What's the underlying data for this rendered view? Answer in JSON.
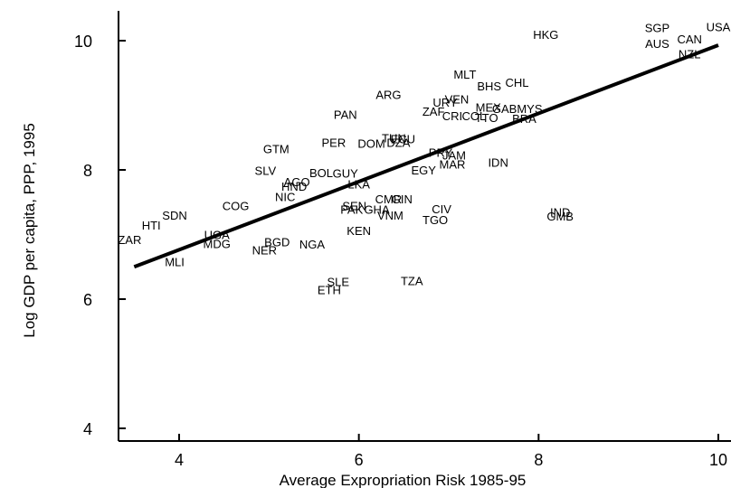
{
  "chart_data": {
    "type": "scatter",
    "xlabel": "Average Expropriation Risk 1985-95",
    "ylabel": "Log GDP per capita, PPP, 1995",
    "xlim": [
      3.3,
      10.0
    ],
    "ylim": [
      3.85,
      10.45
    ],
    "xticks": [
      4,
      6,
      8,
      10
    ],
    "yticks": [
      4,
      6,
      8,
      10
    ],
    "grid": false,
    "fit_line": {
      "x": [
        3.5,
        10.0
      ],
      "y": [
        6.5,
        9.93
      ]
    },
    "points": [
      {
        "label": "USA",
        "x": 10.0,
        "y": 10.22
      },
      {
        "label": "SGP",
        "x": 9.32,
        "y": 10.2
      },
      {
        "label": "CAN",
        "x": 9.68,
        "y": 10.03
      },
      {
        "label": "AUS",
        "x": 9.32,
        "y": 9.96
      },
      {
        "label": "NZL",
        "x": 9.68,
        "y": 9.8
      },
      {
        "label": "HKG",
        "x": 8.08,
        "y": 10.1
      },
      {
        "label": "MLT",
        "x": 7.18,
        "y": 9.48
      },
      {
        "label": "CHL",
        "x": 7.76,
        "y": 9.36
      },
      {
        "label": "BHS",
        "x": 7.45,
        "y": 9.3
      },
      {
        "label": "ARG",
        "x": 6.33,
        "y": 9.17
      },
      {
        "label": "VEN",
        "x": 7.09,
        "y": 9.1
      },
      {
        "label": "URY",
        "x": 6.96,
        "y": 9.05
      },
      {
        "label": "MEX",
        "x": 7.44,
        "y": 8.97
      },
      {
        "label": "GAB",
        "x": 7.62,
        "y": 8.95
      },
      {
        "label": "MYS",
        "x": 7.9,
        "y": 8.95
      },
      {
        "label": "ZAF",
        "x": 6.83,
        "y": 8.91
      },
      {
        "label": "CRI",
        "x": 7.04,
        "y": 8.84
      },
      {
        "label": "COL",
        "x": 7.28,
        "y": 8.84
      },
      {
        "label": "TTO",
        "x": 7.42,
        "y": 8.81
      },
      {
        "label": "BRA",
        "x": 7.84,
        "y": 8.8
      },
      {
        "label": "PAN",
        "x": 5.85,
        "y": 8.86
      },
      {
        "label": "PER",
        "x": 5.72,
        "y": 8.43
      },
      {
        "label": "DOM",
        "x": 6.14,
        "y": 8.41
      },
      {
        "label": "DZA",
        "x": 6.44,
        "y": 8.43
      },
      {
        "label": "TUN",
        "x": 6.39,
        "y": 8.5
      },
      {
        "label": "ECU",
        "x": 6.49,
        "y": 8.48
      },
      {
        "label": "GTM",
        "x": 5.08,
        "y": 8.33
      },
      {
        "label": "PRY",
        "x": 6.91,
        "y": 8.27
      },
      {
        "label": "JAM",
        "x": 7.06,
        "y": 8.23
      },
      {
        "label": "MAR",
        "x": 7.04,
        "y": 8.09
      },
      {
        "label": "EGY",
        "x": 6.72,
        "y": 8.0
      },
      {
        "label": "IDN",
        "x": 7.55,
        "y": 8.12
      },
      {
        "label": "SLV",
        "x": 4.96,
        "y": 7.99
      },
      {
        "label": "BOL",
        "x": 5.58,
        "y": 7.96
      },
      {
        "label": "GUY",
        "x": 5.85,
        "y": 7.95
      },
      {
        "label": "AGO",
        "x": 5.31,
        "y": 7.82
      },
      {
        "label": "HND",
        "x": 5.28,
        "y": 7.75
      },
      {
        "label": "LKA",
        "x": 6.0,
        "y": 7.78
      },
      {
        "label": "NIC",
        "x": 5.18,
        "y": 7.59
      },
      {
        "label": "COG",
        "x": 4.63,
        "y": 7.45
      },
      {
        "label": "SEN",
        "x": 5.95,
        "y": 7.45
      },
      {
        "label": "CMR",
        "x": 6.33,
        "y": 7.55
      },
      {
        "label": "GIN",
        "x": 6.48,
        "y": 7.55
      },
      {
        "label": "PAK",
        "x": 5.92,
        "y": 7.39
      },
      {
        "label": "GHA",
        "x": 6.2,
        "y": 7.39
      },
      {
        "label": "VNM",
        "x": 6.35,
        "y": 7.3
      },
      {
        "label": "CIV",
        "x": 6.92,
        "y": 7.4
      },
      {
        "label": "TGO",
        "x": 6.85,
        "y": 7.23
      },
      {
        "label": "IND",
        "x": 8.24,
        "y": 7.35
      },
      {
        "label": "GMB",
        "x": 8.24,
        "y": 7.29
      },
      {
        "label": "SDN",
        "x": 3.95,
        "y": 7.3
      },
      {
        "label": "HTI",
        "x": 3.69,
        "y": 7.15
      },
      {
        "label": "KEN",
        "x": 6.0,
        "y": 7.06
      },
      {
        "label": "UGA",
        "x": 4.42,
        "y": 7.0
      },
      {
        "label": "MDG",
        "x": 4.42,
        "y": 6.86
      },
      {
        "label": "BGD",
        "x": 5.09,
        "y": 6.89
      },
      {
        "label": "NER",
        "x": 4.95,
        "y": 6.76
      },
      {
        "label": "NGA",
        "x": 5.48,
        "y": 6.85
      },
      {
        "label": "ZAR",
        "x": 3.45,
        "y": 6.92
      },
      {
        "label": "MLI",
        "x": 3.95,
        "y": 6.58
      },
      {
        "label": "SLE",
        "x": 5.77,
        "y": 6.27
      },
      {
        "label": "ETH",
        "x": 5.67,
        "y": 6.15
      },
      {
        "label": "TZA",
        "x": 6.59,
        "y": 6.29
      }
    ]
  }
}
